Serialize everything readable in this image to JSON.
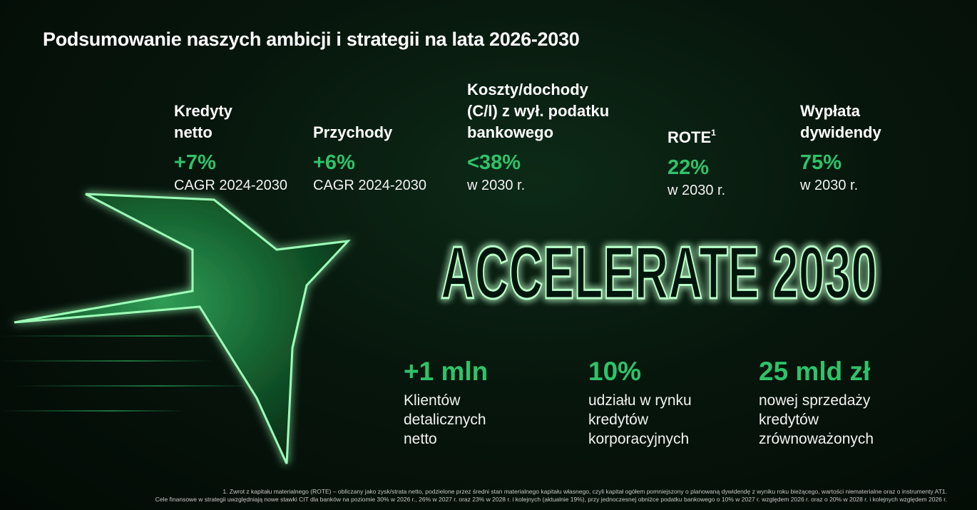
{
  "title": "Podsumowanie naszych ambicji i strategii na lata 2026-2030",
  "kpis": [
    {
      "label_lines": [
        "Kredyty",
        "netto"
      ],
      "value": "+7%",
      "sub": "CAGR 2024-2030"
    },
    {
      "label_lines": [
        "Przychody"
      ],
      "value": "+6%",
      "sub": "CAGR 2024-2030"
    },
    {
      "label_lines": [
        "Koszty/dochody",
        "(C/I) z wył. podatku",
        "bankowego"
      ],
      "value": "<38%",
      "sub": "w 2030 r."
    },
    {
      "label_lines": [
        "ROTE"
      ],
      "label_sup": "1",
      "value": "22%",
      "sub": "w 2030 r."
    },
    {
      "label_lines": [
        "Wypłata",
        "dywidendy"
      ],
      "value": "75%",
      "sub": "w 2030 r."
    }
  ],
  "banner": "ACCELERATE 2030",
  "stats": [
    {
      "value": "+1 mln",
      "desc_lines": [
        "Klientów",
        "detalicznych",
        "netto"
      ]
    },
    {
      "value": "10%",
      "desc_lines": [
        "udziału w rynku",
        "kredytów",
        "korporacyjnych"
      ]
    },
    {
      "value": "25 mld zł",
      "desc_lines": [
        "nowej sprzedaży",
        "kredytów",
        "zrównoważonych"
      ]
    }
  ],
  "footnotes": [
    "1. Zwrot z kapitału materialnego (ROTE) – obliczany jako zysk/strata netto, podzielone przez średni stan materialnego kapitału własnego, czyli kapitał ogółem pomniejszony o planowaną dywidendę z wyniku roku bieżącego, wartości niematerialne oraz o instrumenty AT1.",
    "Cele finansowe w strategii uwzględniają nowe stawki CIT dla banków na poziomie 30% w 2026 r., 26% w 2027 r. oraz 23% w 2028 r. i kolejnych (aktualnie 19%), przy jednoczesnej obniżce podatku bankowego o 10% w 2027 r. względem 2026 r. oraz o 20% w 2028 r. i kolejnych względem 2026 r."
  ],
  "colors": {
    "accent": "#2ec36a",
    "background": "#07160c",
    "text": "#ffffff"
  },
  "icons": {
    "logo": "bird-swoosh-icon"
  }
}
